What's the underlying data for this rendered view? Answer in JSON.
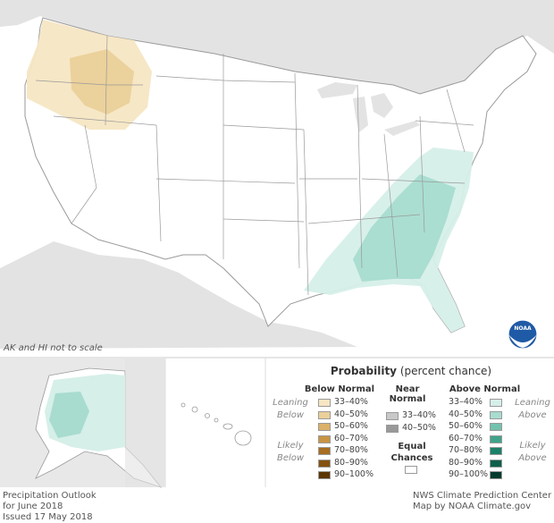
{
  "map": {
    "scale_note": "AK and HI not to scale",
    "logo_text": "NOAA"
  },
  "legend": {
    "title_bold": "Probability",
    "title_rest": " (percent chance)",
    "below_header": "Below Normal",
    "near_header": "Near Normal",
    "above_header": "Above Normal",
    "equal_label": "Equal Chances",
    "leaning_below": "Leaning Below",
    "likely_below": "Likely Below",
    "leaning_above": "Leaning Above",
    "likely_above": "Likely Above",
    "below": [
      {
        "label": "33–40%",
        "color": "#f6e6c3"
      },
      {
        "label": "40–50%",
        "color": "#ead099"
      },
      {
        "label": "50–60%",
        "color": "#dcb169"
      },
      {
        "label": "60–70%",
        "color": "#c99443"
      },
      {
        "label": "70–80%",
        "color": "#a86e22"
      },
      {
        "label": "80–90%",
        "color": "#84520f"
      },
      {
        "label": "90–100%",
        "color": "#5c3505"
      }
    ],
    "near": [
      {
        "label": "33–40%",
        "color": "#c8c8c8"
      },
      {
        "label": "40–50%",
        "color": "#999999"
      }
    ],
    "above": [
      {
        "label": "33–40%",
        "color": "#d6efe9"
      },
      {
        "label": "40–50%",
        "color": "#a8dccf"
      },
      {
        "label": "50–60%",
        "color": "#73c2ae"
      },
      {
        "label": "60–70%",
        "color": "#3fa38a"
      },
      {
        "label": "70–80%",
        "color": "#1c8169"
      },
      {
        "label": "80–90%",
        "color": "#0d5f4b"
      },
      {
        "label": "90–100%",
        "color": "#053b2e"
      }
    ],
    "equal_color": "#ffffff"
  },
  "footer": {
    "title_line1": "Precipitation Outlook",
    "title_line2": "for June 2018",
    "issued": "Issued 17 May 2018",
    "credit_line1": "NWS Climate Prediction Center",
    "credit_line2": "Map by NOAA Climate.gov"
  }
}
